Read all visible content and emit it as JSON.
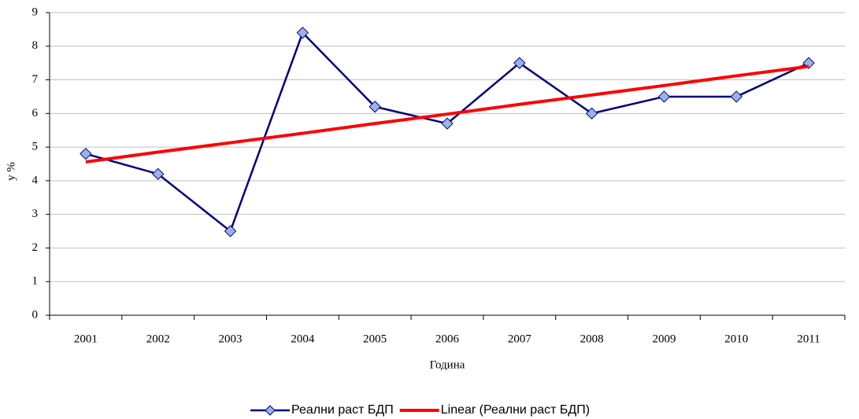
{
  "chart_data": {
    "type": "line",
    "categories": [
      "2001",
      "2002",
      "2003",
      "2004",
      "2005",
      "2006",
      "2007",
      "2008",
      "2009",
      "2010",
      "2011"
    ],
    "series": [
      {
        "name": "Реални раст БДП",
        "color": "#000080",
        "marker_fill": "#99b3e6",
        "marker": "diamond",
        "values": [
          4.8,
          4.2,
          2.5,
          8.4,
          6.2,
          5.7,
          7.5,
          6.0,
          6.5,
          6.5,
          7.5
        ]
      },
      {
        "name": "Linear (Реални раст БДП)",
        "color": "#ff0000",
        "values": [
          4.56,
          4.85,
          5.13,
          5.41,
          5.7,
          5.98,
          6.27,
          6.55,
          6.83,
          7.12,
          7.4
        ]
      }
    ],
    "xlabel": "Година",
    "ylabel": "у %",
    "ylim": [
      0,
      9
    ],
    "yticks": [
      0,
      1,
      2,
      3,
      4,
      5,
      6,
      7,
      8,
      9
    ],
    "grid": true,
    "legend": "bottom"
  }
}
